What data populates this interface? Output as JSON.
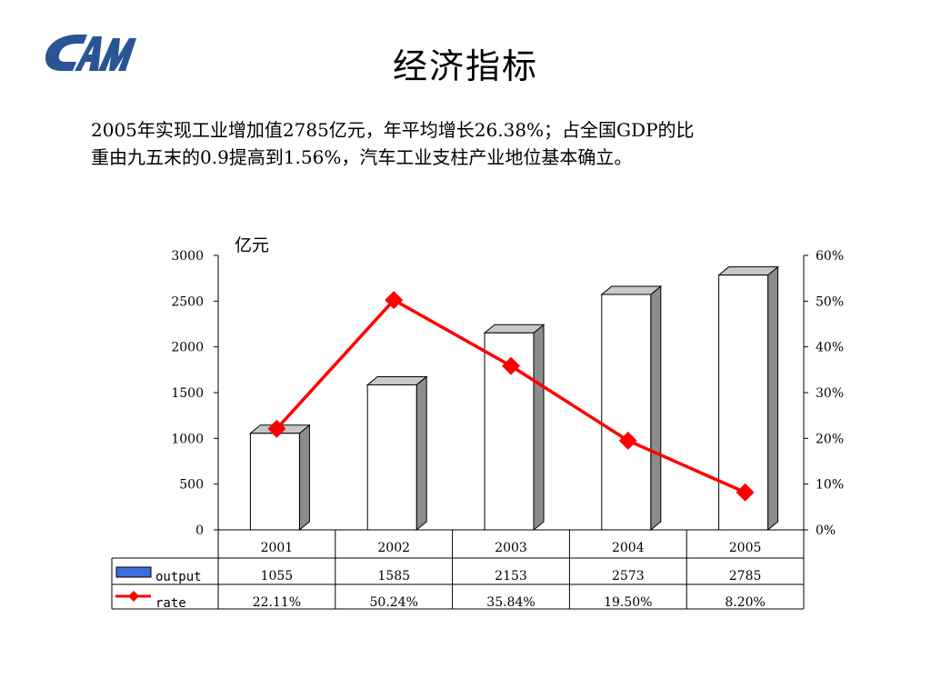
{
  "header": {
    "title": "经济指标",
    "logo": "CAM logo"
  },
  "description": {
    "line1": "2005年实现工业增加值2785亿元，年平均增长26.38%；占全国GDP的比",
    "line2": "重由九五末的0.9提高到1.56%，汽车工业支柱产业地位基本确立。"
  },
  "colors": {
    "bar_face": "#ffffff",
    "bar_side": "#8c8c8c",
    "bar_top": "#c8c8c8",
    "line": "#ff0000",
    "legend_output": "#3d6be0",
    "logo": "#2a5494"
  },
  "chart_data": {
    "type": "bar",
    "categories": [
      "2001",
      "2002",
      "2003",
      "2004",
      "2005"
    ],
    "ylabel": "亿元",
    "ylim": [
      0,
      3000
    ],
    "yticks": [
      "3000",
      "2500",
      "2000",
      "1500",
      "1000",
      "500",
      "0"
    ],
    "y2lim": [
      0,
      0.6
    ],
    "y2ticks": [
      "60%",
      "50%",
      "40%",
      "30%",
      "20%",
      "10%",
      "0%"
    ],
    "series": [
      {
        "name": "output",
        "type": "bar",
        "axis": "left",
        "values": [
          1055,
          1585,
          2153,
          2573,
          2785
        ],
        "labels": [
          "1055",
          "1585",
          "2153",
          "2573",
          "2785"
        ]
      },
      {
        "name": "rate",
        "type": "line",
        "axis": "right",
        "values": [
          0.2211,
          0.5024,
          0.3584,
          0.195,
          0.082
        ],
        "labels": [
          "22.11%",
          "50.24%",
          "35.84%",
          "19.50%",
          "8.20%"
        ]
      }
    ],
    "data_table": true,
    "grid": false
  }
}
